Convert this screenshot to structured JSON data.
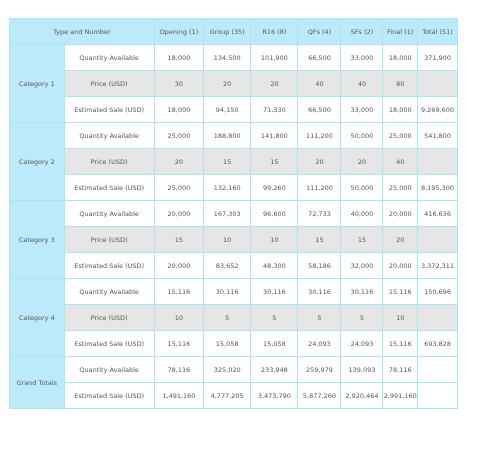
{
  "headers": [
    "Type and Number",
    "Opening (1)",
    "Group (35)",
    "R16 (8)",
    "QFs (4)",
    "SFs (2)",
    "Final (1)",
    "Total (51)"
  ],
  "categories": [
    {
      "name": "Category 1",
      "rows": [
        {
          "label": "Quantity Available",
          "values": [
            "18,000",
            "134,500",
            "101,900",
            "66,500",
            "33,000",
            "18,000",
            "371,900"
          ]
        },
        {
          "label": "Price (USD)",
          "values": [
            "30",
            "20",
            "20",
            "40",
            "40",
            "80",
            ""
          ]
        },
        {
          "label": "Estimated Sale (USD)",
          "values": [
            "18,000",
            "94,150",
            "71,330",
            "66,500",
            "33,000",
            "18,000",
            "9,269,600"
          ]
        }
      ]
    },
    {
      "name": "Category 2",
      "rows": [
        {
          "label": "Quantity Available",
          "values": [
            "25,000",
            "188,800",
            "141,800",
            "111,200",
            "50,000",
            "25,000",
            "541,800"
          ]
        },
        {
          "label": "Price (USD)",
          "values": [
            "20",
            "15",
            "15",
            "20",
            "20",
            "40",
            ""
          ]
        },
        {
          "label": "Estimated Sale (USD)",
          "values": [
            "25,000",
            "132,160",
            "99,260",
            "111,200",
            "50,000",
            "25,000",
            "8,195,300"
          ]
        }
      ]
    },
    {
      "name": "Category 3",
      "rows": [
        {
          "label": "Quantity Available",
          "values": [
            "20,000",
            "167,303",
            "96,600",
            "72,733",
            "40,000",
            "20,000",
            "416,636"
          ]
        },
        {
          "label": "Price (USD)",
          "values": [
            "15",
            "10",
            "10",
            "15",
            "15",
            "20",
            ""
          ]
        },
        {
          "label": "Estimated Sale (USD)",
          "values": [
            "20,000",
            "83,652",
            "48,300",
            "58,186",
            "32,000",
            "20,000",
            "3,372,311"
          ]
        }
      ]
    },
    {
      "name": "Category 4",
      "rows": [
        {
          "label": "Quantity Available",
          "values": [
            "15,116",
            "30,116",
            "30,116",
            "30,116",
            "30,116",
            "15,116",
            "150,696"
          ]
        },
        {
          "label": "Price (USD)",
          "values": [
            "10",
            "5",
            "5",
            "5",
            "5",
            "10",
            ""
          ]
        },
        {
          "label": "Estimated Sale (USD)",
          "values": [
            "15,116",
            "15,058",
            "15,058",
            "24,093",
            "24,093",
            "15,116",
            "693,828"
          ]
        }
      ]
    },
    {
      "name": "Grand Totals",
      "rows": [
        {
          "label": "Quantity Available",
          "values": [
            "78,116",
            "325,020",
            "233,948",
            "259,979",
            "139,093",
            "78,116",
            ""
          ]
        },
        {
          "label": "Estimated Sale (USD)",
          "values": [
            "1,491,160",
            "4,777,205",
            "3,473,790",
            "5,877,260",
            "2,920,464",
            "2,991,160",
            ""
          ]
        }
      ]
    }
  ]
}
